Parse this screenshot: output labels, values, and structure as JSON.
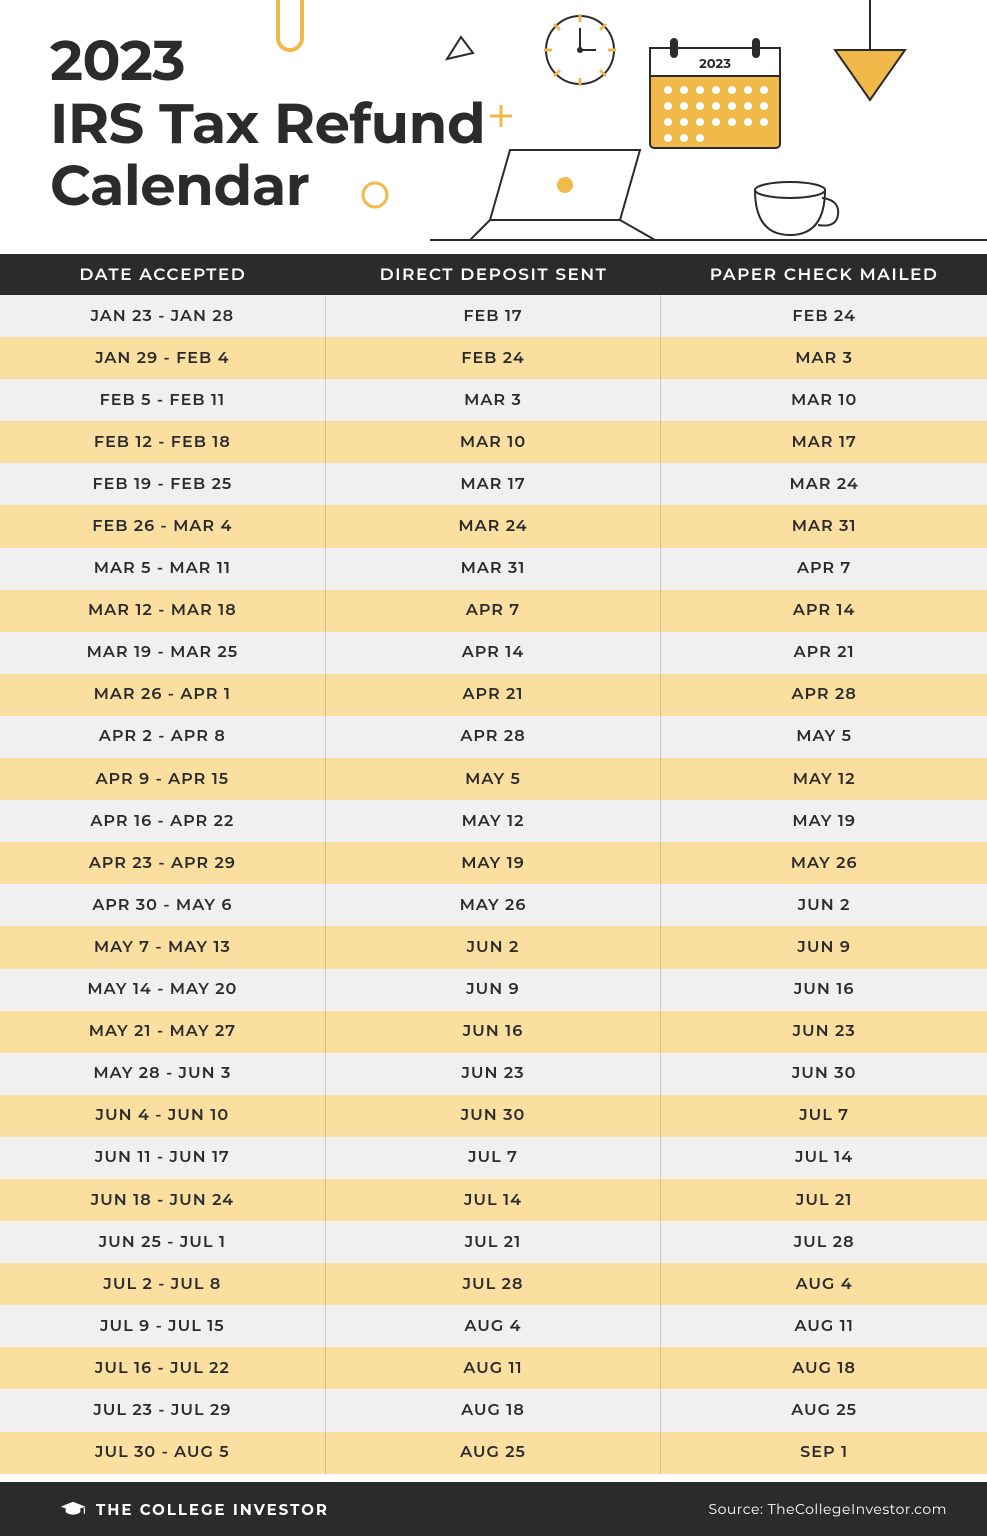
{
  "title_line1": "2023",
  "title_line2": "IRS Tax Refund",
  "title_line3": "Calendar",
  "columns": {
    "c1": "DATE ACCEPTED",
    "c2": "DIRECT DEPOSIT SENT",
    "c3": "PAPER CHECK MAILED"
  },
  "colors": {
    "header_bg": "#2b2b2b",
    "row_light": "#f0f0f0",
    "row_accent": "#fadfa1",
    "accent_yellow": "#f1b84a",
    "text": "#2b2b2b"
  },
  "calendar_label": "2023",
  "rows": [
    {
      "accepted": "JAN 23 - JAN 28",
      "deposit": "FEB 17",
      "check": "FEB 24"
    },
    {
      "accepted": "JAN 29 - FEB 4",
      "deposit": "FEB 24",
      "check": "MAR 3"
    },
    {
      "accepted": "FEB 5 - FEB 11",
      "deposit": "MAR 3",
      "check": "MAR 10"
    },
    {
      "accepted": "FEB 12 - FEB 18",
      "deposit": "MAR 10",
      "check": "MAR 17"
    },
    {
      "accepted": "FEB 19 - FEB 25",
      "deposit": "MAR 17",
      "check": "MAR 24"
    },
    {
      "accepted": "FEB 26 - MAR 4",
      "deposit": "MAR 24",
      "check": "MAR 31"
    },
    {
      "accepted": "MAR 5 - MAR 11",
      "deposit": "MAR 31",
      "check": "APR 7"
    },
    {
      "accepted": "MAR 12 - MAR 18",
      "deposit": "APR 7",
      "check": "APR 14"
    },
    {
      "accepted": "MAR 19 - MAR 25",
      "deposit": "APR 14",
      "check": "APR 21"
    },
    {
      "accepted": "MAR 26 - APR 1",
      "deposit": "APR 21",
      "check": "APR 28"
    },
    {
      "accepted": "APR 2 - APR 8",
      "deposit": "APR 28",
      "check": "MAY 5"
    },
    {
      "accepted": "APR 9 - APR 15",
      "deposit": "MAY 5",
      "check": "MAY 12"
    },
    {
      "accepted": "APR 16 - APR 22",
      "deposit": "MAY 12",
      "check": "MAY 19"
    },
    {
      "accepted": "APR 23 - APR 29",
      "deposit": "MAY 19",
      "check": "MAY 26"
    },
    {
      "accepted": "APR 30 - MAY 6",
      "deposit": "MAY 26",
      "check": "JUN 2"
    },
    {
      "accepted": "MAY 7 - MAY 13",
      "deposit": "JUN 2",
      "check": "JUN 9"
    },
    {
      "accepted": "MAY 14 - MAY 20",
      "deposit": "JUN 9",
      "check": "JUN 16"
    },
    {
      "accepted": "MAY 21 - MAY 27",
      "deposit": "JUN 16",
      "check": "JUN 23"
    },
    {
      "accepted": "MAY 28 - JUN 3",
      "deposit": "JUN 23",
      "check": "JUN 30"
    },
    {
      "accepted": "JUN 4 - JUN 10",
      "deposit": "JUN 30",
      "check": "JUL 7"
    },
    {
      "accepted": "JUN 11 - JUN 17",
      "deposit": "JUL 7",
      "check": "JUL 14"
    },
    {
      "accepted": "JUN 18 - JUN 24",
      "deposit": "JUL 14",
      "check": "JUL 21"
    },
    {
      "accepted": "JUN 25 - JUL 1",
      "deposit": "JUL 21",
      "check": "JUL 28"
    },
    {
      "accepted": "JUL 2 - JUL 8",
      "deposit": "JUL 28",
      "check": "AUG 4"
    },
    {
      "accepted": "JUL 9 - JUL 15",
      "deposit": "AUG 4",
      "check": "AUG 11"
    },
    {
      "accepted": "JUL 16 - JUL 22",
      "deposit": "AUG 11",
      "check": "AUG 18"
    },
    {
      "accepted": "JUL 23 - JUL 29",
      "deposit": "AUG 18",
      "check": "AUG 25"
    },
    {
      "accepted": "JUL 30 - AUG 5",
      "deposit": "AUG 25",
      "check": "SEP 1"
    }
  ],
  "brand": "THE COLLEGE INVESTOR",
  "source": "Source: TheCollegeInvestor.com"
}
